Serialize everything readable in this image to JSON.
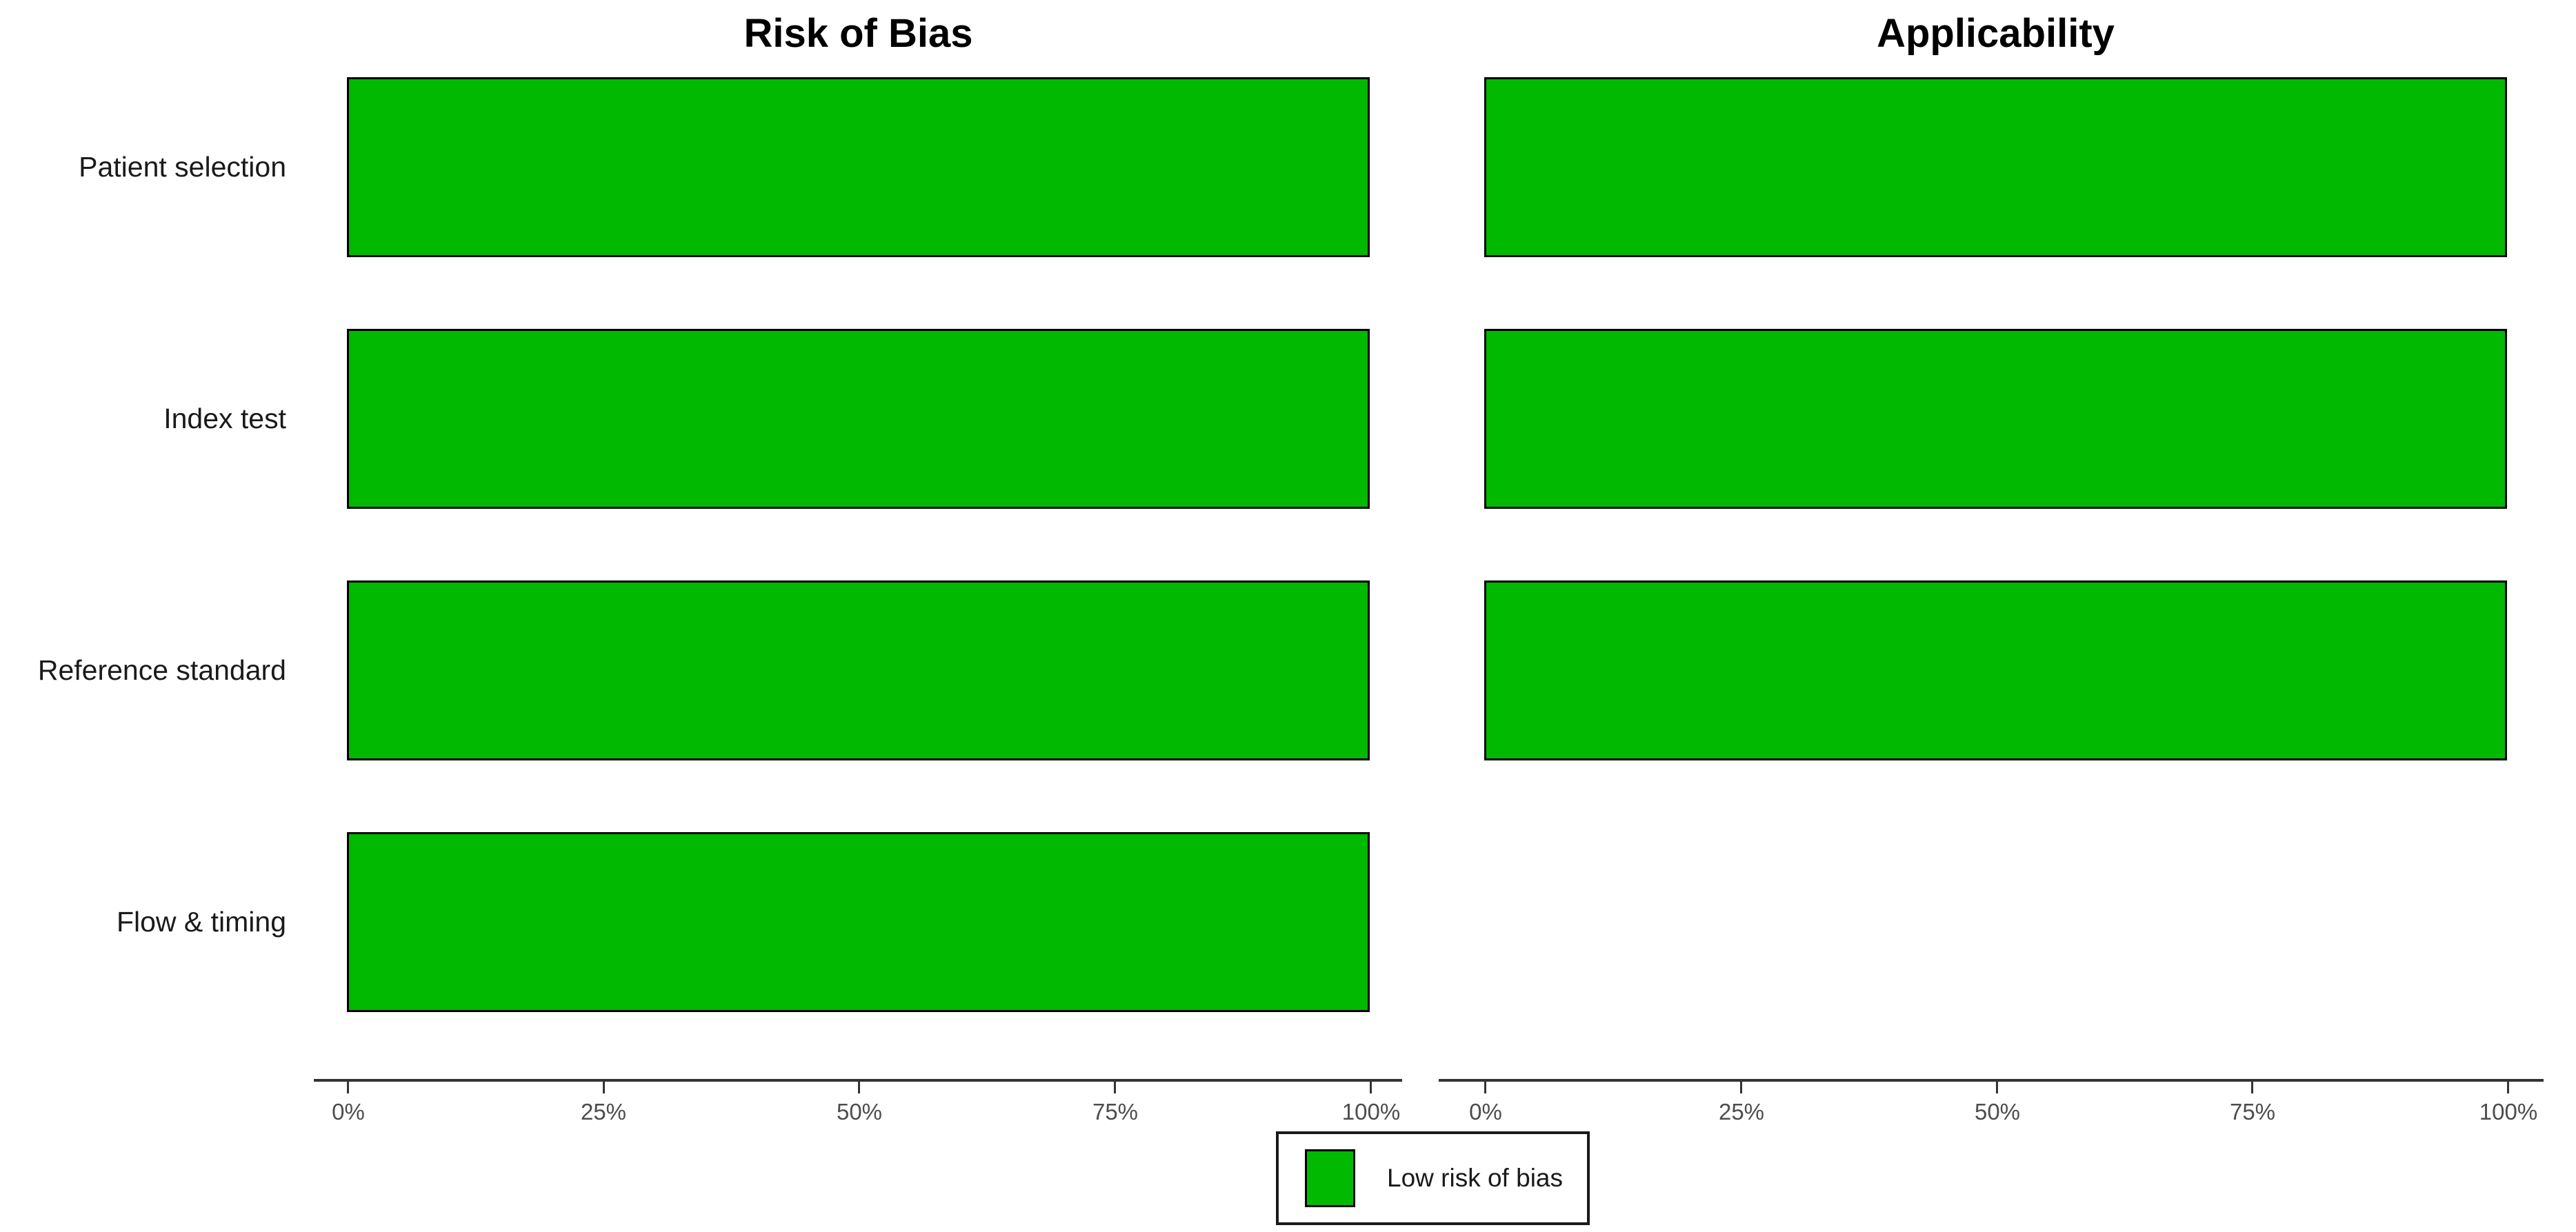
{
  "chart_data": {
    "type": "bar",
    "orientation": "horizontal",
    "panels": [
      {
        "title": "Risk of Bias",
        "categories": [
          "Patient selection",
          "Index test",
          "Reference standard",
          "Flow & timing"
        ],
        "series": [
          {
            "name": "Low risk of bias",
            "values": [
              100,
              100,
              100,
              100
            ]
          }
        ]
      },
      {
        "title": "Applicability",
        "categories": [
          "Patient selection",
          "Index test",
          "Reference standard"
        ],
        "series": [
          {
            "name": "Low risk of bias",
            "values": [
              100,
              100,
              100
            ]
          }
        ]
      }
    ],
    "x_ticks": [
      "0%",
      "25%",
      "50%",
      "75%",
      "100%"
    ],
    "xlim": [
      0,
      100
    ],
    "grid": "off",
    "legend": {
      "label": "Low risk of bias",
      "position": "bottom-center",
      "swatch_color": "#00b900"
    },
    "colors": {
      "bar_fill": "#00b900",
      "bar_border": "#000000",
      "axis": "#333333",
      "tick_label": "#4d4d4d",
      "background": "#ffffff"
    }
  }
}
